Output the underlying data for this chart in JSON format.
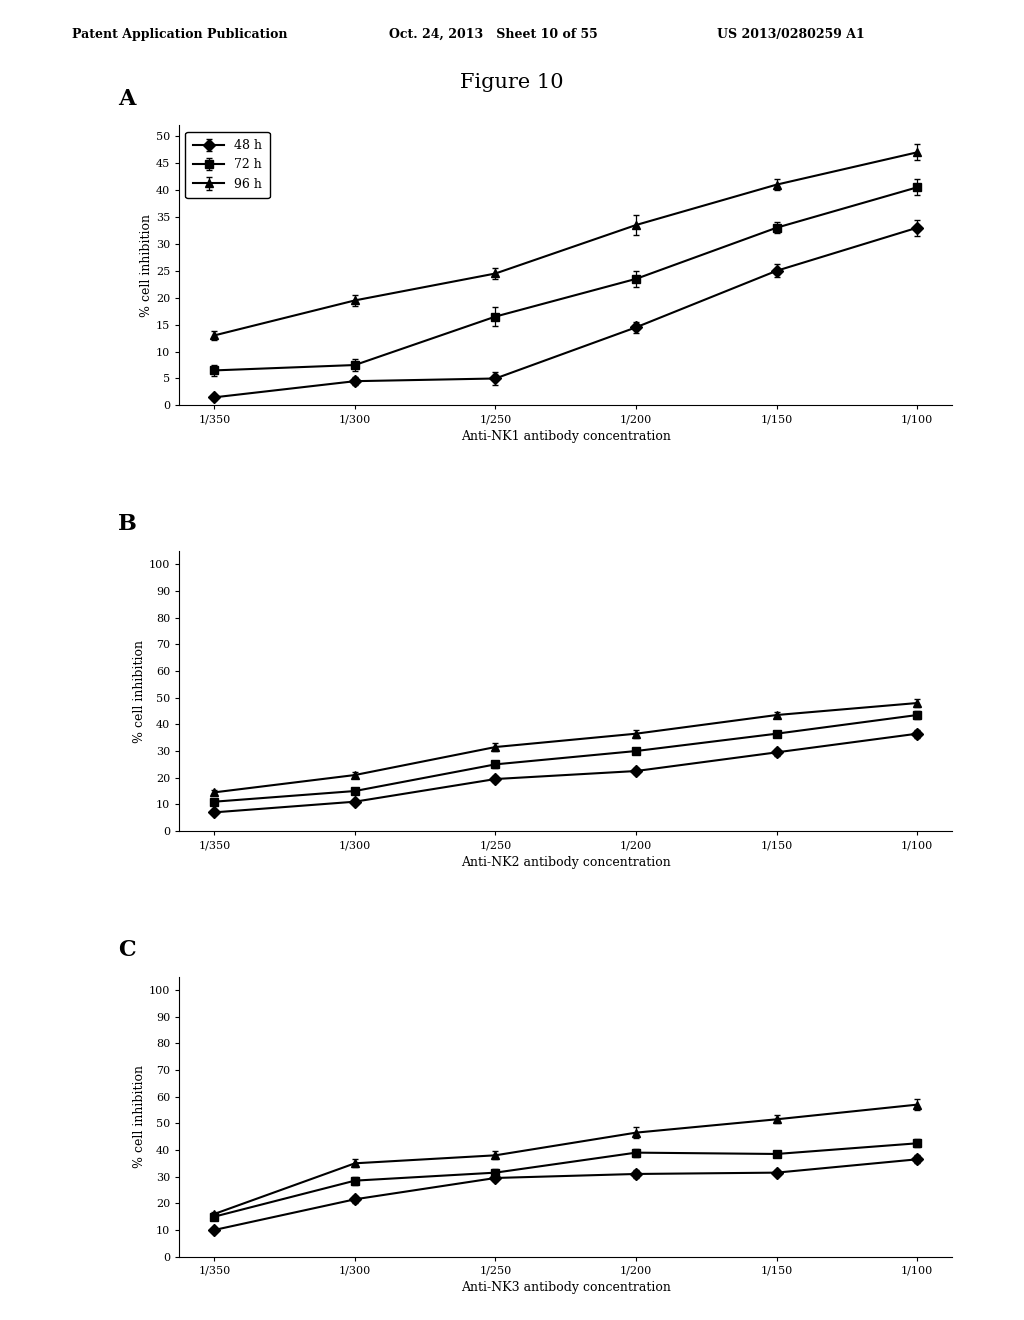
{
  "figure_title": "Figure 10",
  "header_left": "Patent Application Publication",
  "header_mid": "Oct. 24, 2013   Sheet 10 of 55",
  "header_right": "US 2013/0280259 A1",
  "x_labels": [
    "1/350",
    "1/300",
    "1/250",
    "1/200",
    "1/150",
    "1/100"
  ],
  "x_positions": [
    0,
    1,
    2,
    3,
    4,
    5
  ],
  "legend_labels": [
    "48 h",
    "72 h",
    "96 h"
  ],
  "subplot_labels": [
    "A",
    "B",
    "C"
  ],
  "panel_A": {
    "xlabel": "Anti-NK1 antibody concentration",
    "ylabel": "% cell inhibition",
    "yticks": [
      0,
      5,
      10,
      15,
      20,
      25,
      30,
      35,
      40,
      45,
      50
    ],
    "ylim": [
      0,
      52
    ],
    "series_48h": [
      1.5,
      4.5,
      5.0,
      14.5,
      25.0,
      33.0
    ],
    "series_72h": [
      6.5,
      7.5,
      16.5,
      23.5,
      33.0,
      40.5
    ],
    "series_96h": [
      13.0,
      19.5,
      24.5,
      33.5,
      41.0,
      47.0
    ],
    "err_48h": [
      0.5,
      0.8,
      1.2,
      1.0,
      1.2,
      1.5
    ],
    "err_72h": [
      1.0,
      1.2,
      1.8,
      1.5,
      1.0,
      1.5
    ],
    "err_96h": [
      0.8,
      1.0,
      1.0,
      1.8,
      1.0,
      1.5
    ],
    "show_legend": true
  },
  "panel_B": {
    "xlabel": "Anti-NK2 antibody concentration",
    "ylabel": "% cell inhibition",
    "yticks": [
      0,
      10,
      20,
      30,
      40,
      50,
      60,
      70,
      80,
      90,
      100
    ],
    "ylim": [
      0,
      105
    ],
    "series_48h": [
      7.0,
      11.0,
      19.5,
      22.5,
      29.5,
      36.5
    ],
    "series_72h": [
      11.0,
      15.0,
      25.0,
      30.0,
      36.5,
      43.5
    ],
    "series_96h": [
      14.5,
      21.0,
      31.5,
      36.5,
      43.5,
      48.0
    ],
    "err_48h": [
      0.5,
      0.8,
      1.0,
      1.0,
      1.2,
      1.5
    ],
    "err_72h": [
      0.8,
      1.0,
      1.2,
      1.2,
      1.0,
      1.5
    ],
    "err_96h": [
      0.8,
      1.0,
      1.5,
      1.5,
      1.0,
      1.5
    ],
    "show_legend": false
  },
  "panel_C": {
    "xlabel": "Anti-NK3 antibody concentration",
    "ylabel": "% cell inhibition",
    "yticks": [
      0,
      10,
      20,
      30,
      40,
      50,
      60,
      70,
      80,
      90,
      100
    ],
    "ylim": [
      0,
      105
    ],
    "series_48h": [
      10.0,
      21.5,
      29.5,
      31.0,
      31.5,
      36.5
    ],
    "series_72h": [
      15.0,
      28.5,
      31.5,
      39.0,
      38.5,
      42.5
    ],
    "series_96h": [
      16.0,
      35.0,
      38.0,
      46.5,
      51.5,
      57.0
    ],
    "err_48h": [
      0.5,
      1.2,
      1.2,
      1.5,
      1.0,
      1.5
    ],
    "err_72h": [
      0.8,
      1.5,
      1.2,
      1.5,
      1.0,
      1.5
    ],
    "err_96h": [
      0.8,
      1.5,
      1.5,
      2.0,
      1.5,
      2.0
    ],
    "show_legend": false
  },
  "background_color": "#ffffff",
  "line_color": "#000000",
  "marker_48h": "D",
  "marker_72h": "s",
  "marker_96h": "^",
  "markersize": 6,
  "linewidth": 1.5,
  "title_font_size": 15,
  "label_font_size": 9,
  "tick_font_size": 8,
  "sublabel_font_size": 16,
  "header_font_size": 9
}
